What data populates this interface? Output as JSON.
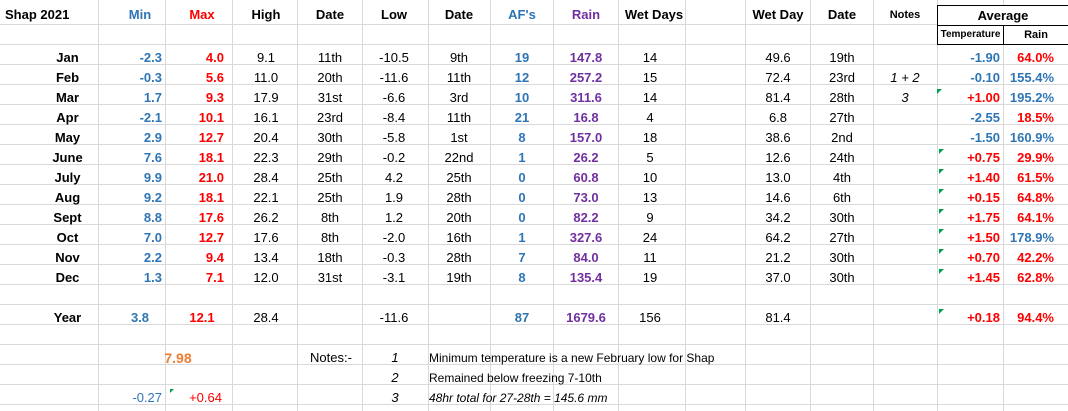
{
  "colors": {
    "min": "#2e75b6",
    "max": "#ff0000",
    "af": "#2e75b6",
    "rain": "#7030a0",
    "highlight": "#ed7d31",
    "comment_marker": "#00a050"
  },
  "header": {
    "title": "Shap 2021",
    "min": "Min",
    "max": "Max",
    "high": "High",
    "date": "Date",
    "low": "Low",
    "date2": "Date",
    "afs": "AF's",
    "rain": "Rain",
    "wet_days": "Wet Days",
    "wet_day": "Wet Day",
    "date3": "Date",
    "notes": "Notes",
    "average": "Average",
    "temperature": "Temperature",
    "rain_sub": "Rain"
  },
  "rows": [
    {
      "month": "Jan",
      "min": "-2.3",
      "max": "4.0",
      "high": "9.1",
      "high_date": "11th",
      "low": "-10.5",
      "low_date": "9th",
      "afs": "19",
      "rain": "147.8",
      "wet_days": "14",
      "wet_day": "49.6",
      "wet_date": "19th",
      "notes": "",
      "temp_avg": "-1.90",
      "rain_avg": "64.0%",
      "temp_color": "#2e75b6",
      "rain_color": "#ff0000"
    },
    {
      "month": "Feb",
      "min": "-0.3",
      "max": "5.6",
      "high": "11.0",
      "high_date": "20th",
      "low": "-11.6",
      "low_date": "11th",
      "afs": "12",
      "rain": "257.2",
      "wet_days": "15",
      "wet_day": "72.4",
      "wet_date": "23rd",
      "notes": "1  +  2",
      "temp_avg": "-0.10",
      "rain_avg": "155.4%",
      "temp_color": "#2e75b6",
      "rain_color": "#2e75b6"
    },
    {
      "month": "Mar",
      "min": "1.7",
      "max": "9.3",
      "high": "17.9",
      "high_date": "31st",
      "low": "-6.6",
      "low_date": "3rd",
      "afs": "10",
      "rain": "311.6",
      "wet_days": "14",
      "wet_day": "81.4",
      "wet_date": "28th",
      "notes": "3",
      "temp_avg": "+1.00",
      "rain_avg": "195.2%",
      "temp_color": "#ff0000",
      "rain_color": "#2e75b6"
    },
    {
      "month": "Apr",
      "min": "-2.1",
      "max": "10.1",
      "high": "16.1",
      "high_date": "23rd",
      "low": "-8.4",
      "low_date": "11th",
      "afs": "21",
      "rain": "16.8",
      "wet_days": "4",
      "wet_day": "6.8",
      "wet_date": "27th",
      "notes": "",
      "temp_avg": "-2.55",
      "rain_avg": "18.5%",
      "temp_color": "#2e75b6",
      "rain_color": "#ff0000"
    },
    {
      "month": "May",
      "min": "2.9",
      "max": "12.7",
      "high": "20.4",
      "high_date": "30th",
      "low": "-5.8",
      "low_date": "1st",
      "afs": "8",
      "rain": "157.0",
      "wet_days": "18",
      "wet_day": "38.6",
      "wet_date": "2nd",
      "notes": "",
      "temp_avg": "-1.50",
      "rain_avg": "160.9%",
      "temp_color": "#2e75b6",
      "rain_color": "#2e75b6"
    },
    {
      "month": "June",
      "min": "7.6",
      "max": "18.1",
      "high": "22.3",
      "high_date": "29th",
      "low": "-0.2",
      "low_date": "22nd",
      "afs": "1",
      "rain": "26.2",
      "wet_days": "5",
      "wet_day": "12.6",
      "wet_date": "24th",
      "notes": "",
      "temp_avg": "+0.75",
      "rain_avg": "29.9%",
      "temp_color": "#ff0000",
      "rain_color": "#ff0000"
    },
    {
      "month": "July",
      "min": "9.9",
      "max": "21.0",
      "high": "28.4",
      "high_date": "25th",
      "low": "4.2",
      "low_date": "25th",
      "afs": "0",
      "rain": "60.8",
      "wet_days": "10",
      "wet_day": "13.0",
      "wet_date": "4th",
      "notes": "",
      "temp_avg": "+1.40",
      "rain_avg": "61.5%",
      "temp_color": "#ff0000",
      "rain_color": "#ff0000"
    },
    {
      "month": "Aug",
      "min": "9.2",
      "max": "18.1",
      "high": "22.1",
      "high_date": "25th",
      "low": "1.9",
      "low_date": "28th",
      "afs": "0",
      "rain": "73.0",
      "wet_days": "13",
      "wet_day": "14.6",
      "wet_date": "6th",
      "notes": "",
      "temp_avg": "+0.15",
      "rain_avg": "64.8%",
      "temp_color": "#ff0000",
      "rain_color": "#ff0000"
    },
    {
      "month": "Sept",
      "min": "8.8",
      "max": "17.6",
      "high": "26.2",
      "high_date": "8th",
      "low": "1.2",
      "low_date": "20th",
      "afs": "0",
      "rain": "82.2",
      "wet_days": "9",
      "wet_day": "34.2",
      "wet_date": "30th",
      "notes": "",
      "temp_avg": "+1.75",
      "rain_avg": "64.1%",
      "temp_color": "#ff0000",
      "rain_color": "#ff0000"
    },
    {
      "month": "Oct",
      "min": "7.0",
      "max": "12.7",
      "high": "17.6",
      "high_date": "8th",
      "low": "-2.0",
      "low_date": "16th",
      "afs": "1",
      "rain": "327.6",
      "wet_days": "24",
      "wet_day": "64.2",
      "wet_date": "27th",
      "notes": "",
      "temp_avg": "+1.50",
      "rain_avg": "178.9%",
      "temp_color": "#ff0000",
      "rain_color": "#2e75b6"
    },
    {
      "month": "Nov",
      "min": "2.2",
      "max": "9.4",
      "high": "13.4",
      "high_date": "18th",
      "low": "-0.3",
      "low_date": "28th",
      "afs": "7",
      "rain": "84.0",
      "wet_days": "11",
      "wet_day": "21.2",
      "wet_date": "30th",
      "notes": "",
      "temp_avg": "+0.70",
      "rain_avg": "42.2%",
      "temp_color": "#ff0000",
      "rain_color": "#ff0000"
    },
    {
      "month": "Dec",
      "min": "1.3",
      "max": "7.1",
      "high": "12.0",
      "high_date": "31st",
      "low": "-3.1",
      "low_date": "19th",
      "afs": "8",
      "rain": "135.4",
      "wet_days": "19",
      "wet_day": "37.0",
      "wet_date": "30th",
      "notes": "",
      "temp_avg": "+1.45",
      "rain_avg": "62.8%",
      "temp_color": "#ff0000",
      "rain_color": "#ff0000"
    }
  ],
  "year": {
    "label": "Year",
    "min": "3.8",
    "max": "12.1",
    "high": "28.4",
    "low": "-11.6",
    "afs": "87",
    "rain": "1679.6",
    "wet_days": "156",
    "wet_day": "81.4",
    "temp_avg": "+0.18",
    "rain_avg": "94.4%"
  },
  "mean_temp": "7.98",
  "notes_label": "Notes:-",
  "notes": [
    {
      "num": "1",
      "text": "Minimum temperature is a new February low for Shap"
    },
    {
      "num": "2",
      "text": "Remained below freezing 7-10th"
    },
    {
      "num": "3",
      "text": "48hr total for 27-28th = 145.6 mm"
    }
  ],
  "anomaly_min": "-0.27",
  "anomaly_max": "+0.64"
}
